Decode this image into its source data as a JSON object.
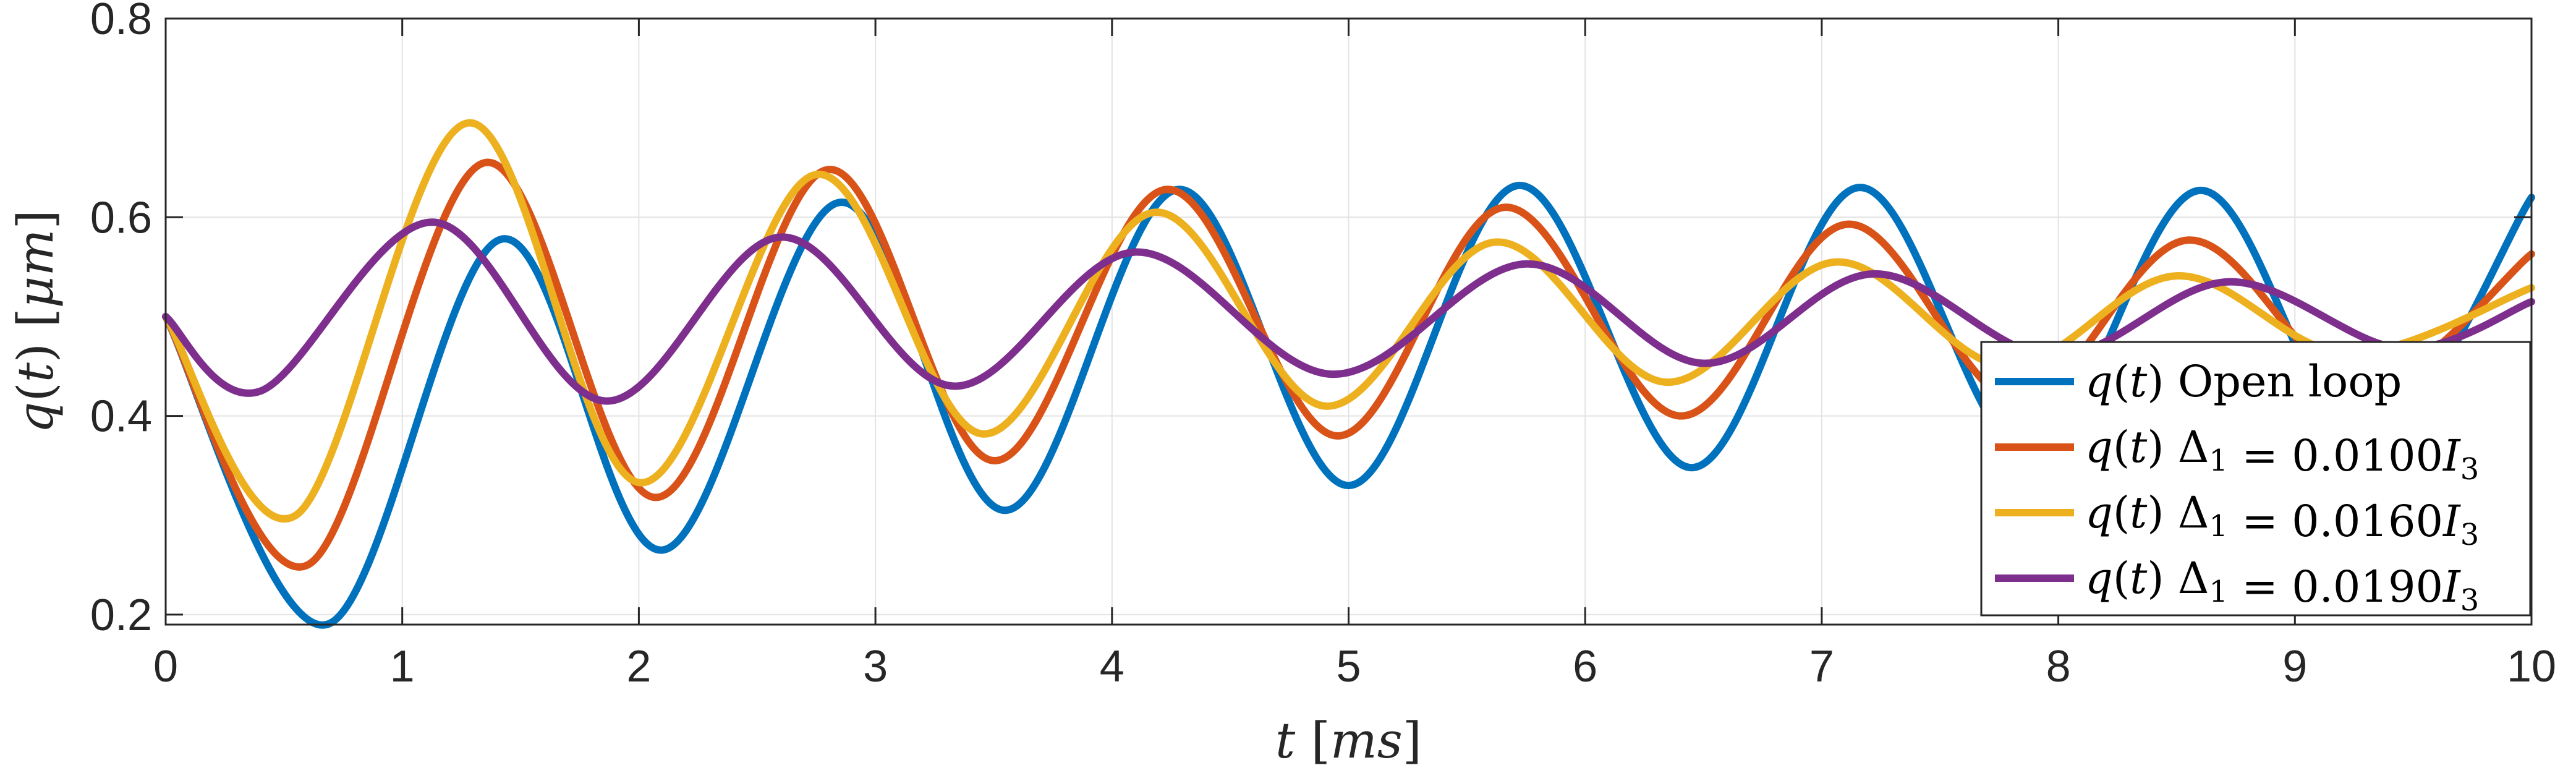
{
  "chart_data": {
    "type": "line",
    "xlabel": "t [ms]",
    "ylabel": "q(t) [μm]",
    "xlim": [
      0,
      10
    ],
    "ylim": [
      0.19,
      0.8
    ],
    "xticks": [
      0,
      1,
      2,
      3,
      4,
      5,
      6,
      7,
      8,
      9,
      10
    ],
    "xtick_labels": [
      "0",
      "1",
      "2",
      "3",
      "4",
      "5",
      "6",
      "7",
      "8",
      "9",
      "10"
    ],
    "yticks": [
      0.2,
      0.4,
      0.6,
      0.8
    ],
    "ytick_labels": [
      "0.2",
      "0.4",
      "0.6",
      "0.8"
    ],
    "grid": true,
    "legend_position": "bottom-right",
    "series": [
      {
        "name": "q(t) Open loop",
        "color": "#0072BD",
        "x": [
          0,
          0.68,
          1.42,
          2.1,
          2.85,
          3.55,
          4.28,
          5.0,
          5.72,
          6.45,
          7.16,
          7.88,
          8.6,
          9.3,
          10.0
        ],
        "y": [
          0.5,
          0.19,
          0.578,
          0.265,
          0.615,
          0.305,
          0.628,
          0.33,
          0.632,
          0.348,
          0.63,
          0.36,
          0.627,
          0.37,
          0.62
        ]
      },
      {
        "name": "q(t) Δ1 = 0.0100I3",
        "color": "#D95319",
        "x": [
          0,
          0.6,
          1.35,
          2.07,
          2.8,
          3.5,
          4.23,
          4.95,
          5.66,
          6.4,
          7.11,
          7.83,
          8.55,
          9.28,
          10.0
        ],
        "y": [
          0.5,
          0.25,
          0.655,
          0.318,
          0.648,
          0.355,
          0.628,
          0.38,
          0.61,
          0.4,
          0.593,
          0.415,
          0.577,
          0.43,
          0.563
        ]
      },
      {
        "name": "q(t) Δ1 = 0.0160I3",
        "color": "#EDB120",
        "x": [
          0,
          0.55,
          1.28,
          2.0,
          2.75,
          3.45,
          4.18,
          4.9,
          5.62,
          6.34,
          7.06,
          7.78,
          8.5,
          9.22,
          10.0
        ],
        "y": [
          0.5,
          0.3,
          0.695,
          0.333,
          0.643,
          0.382,
          0.605,
          0.41,
          0.575,
          0.434,
          0.555,
          0.45,
          0.541,
          0.463,
          0.529
        ]
      },
      {
        "name": "q(t) Δ1 = 0.0190I3",
        "color": "#7E2F8E",
        "x": [
          0,
          0.4,
          1.13,
          1.86,
          2.6,
          3.33,
          4.1,
          4.93,
          5.75,
          6.5,
          7.22,
          7.98,
          8.72,
          9.45,
          10.0
        ],
        "y": [
          0.5,
          0.425,
          0.595,
          0.415,
          0.58,
          0.43,
          0.565,
          0.442,
          0.553,
          0.453,
          0.543,
          0.46,
          0.535,
          0.468,
          0.515
        ]
      }
    ]
  }
}
